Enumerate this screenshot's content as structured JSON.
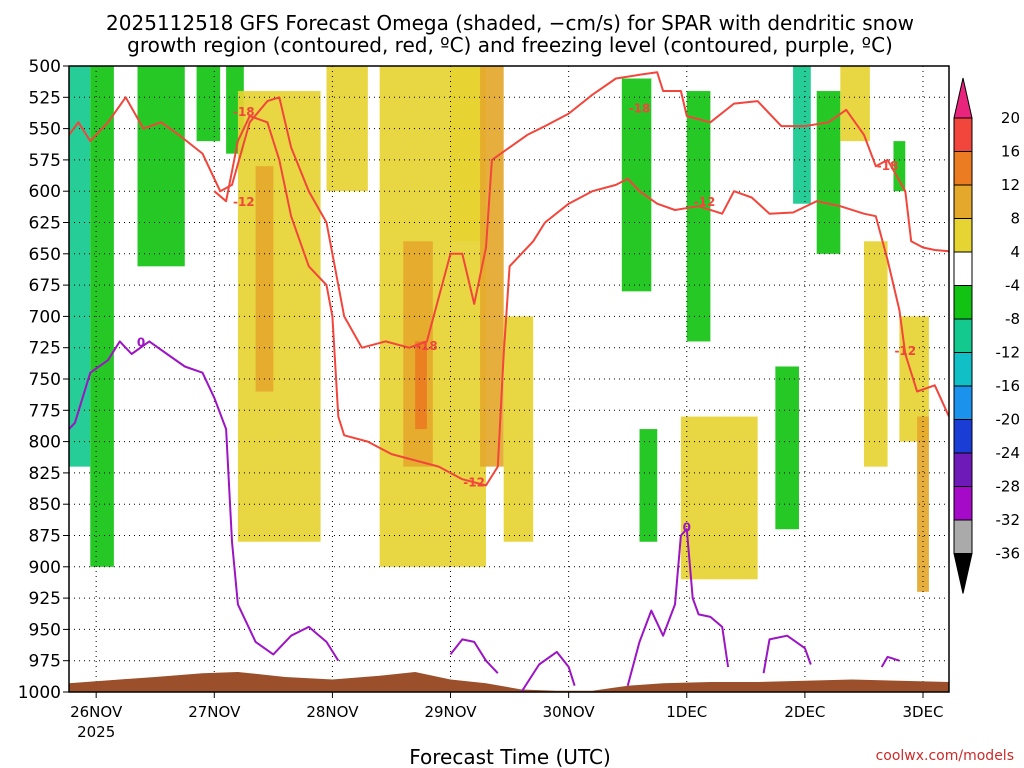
{
  "chart_data": {
    "type": "heatmap",
    "title": "2025112518 GFS Forecast Omega (shaded, −cm/s) for SPAR with dendritic snow",
    "subtitle": "growth region (contoured, red, ºC) and freezing level (contoured, purple, ºC)",
    "xlabel": "Forecast Time (UTC)",
    "ylabel": "",
    "credit": "coolwx.com/models",
    "x_ticks": [
      "26NOV",
      "27NOV",
      "28NOV",
      "29NOV",
      "30NOV",
      "1DEC",
      "2DEC",
      "3DEC"
    ],
    "x_tick_year": "2025",
    "x_range_days": [
      -0.23,
      7.22
    ],
    "y_ticks": [
      "500",
      "525",
      "550",
      "575",
      "600",
      "625",
      "650",
      "675",
      "700",
      "725",
      "750",
      "775",
      "800",
      "825",
      "850",
      "875",
      "900",
      "925",
      "950",
      "975",
      "1000"
    ],
    "y_range_hpa": [
      500,
      1000
    ],
    "grid": true,
    "colorbar": {
      "labels": [
        "20",
        "16",
        "12",
        "8",
        "4",
        "-4",
        "-8",
        "-12",
        "-16",
        "-20",
        "-24",
        "-28",
        "-32",
        "-36"
      ],
      "colors": [
        "#e8247d",
        "#f2463c",
        "#ec7c22",
        "#e4a82c",
        "#e6d432",
        "#ffffff",
        "#13c313",
        "#14c98e",
        "#11bfc7",
        "#1b93ec",
        "#1a3dd6",
        "#6e1ab9",
        "#a50ac8",
        "#aaaaaa",
        "#000000"
      ]
    },
    "colors": {
      "dgz": "#f2463c",
      "freezing": "#9d14c4",
      "terrain": "#9b4f2a",
      "shade_yellow": "#e6d432",
      "shade_gold": "#e4a82c",
      "shade_orange": "#ec7c22",
      "shade_green": "#13c313",
      "shade_teal": "#14c98e",
      "shade_cyan": "#11bfc7"
    },
    "dgz_upper": {
      "label": "-18",
      "points": [
        [
          -0.23,
          555
        ],
        [
          -0.15,
          545
        ],
        [
          -0.05,
          560
        ],
        [
          0.1,
          545
        ],
        [
          0.25,
          525
        ],
        [
          0.4,
          550
        ],
        [
          0.55,
          545
        ],
        [
          0.7,
          555
        ],
        [
          0.9,
          570
        ],
        [
          1.05,
          600
        ],
        [
          1.15,
          595
        ],
        [
          1.3,
          545
        ],
        [
          1.45,
          528
        ],
        [
          1.55,
          525
        ],
        [
          1.65,
          565
        ],
        [
          1.8,
          600
        ],
        [
          1.95,
          625
        ],
        [
          2.1,
          700
        ],
        [
          2.25,
          725
        ],
        [
          2.45,
          720
        ],
        [
          2.65,
          725
        ],
        [
          2.8,
          720
        ],
        [
          3.0,
          650
        ],
        [
          3.1,
          650
        ],
        [
          3.2,
          690
        ],
        [
          3.3,
          645
        ],
        [
          3.35,
          575
        ],
        [
          3.5,
          565
        ],
        [
          3.65,
          555
        ],
        [
          3.8,
          548
        ],
        [
          4.0,
          538
        ],
        [
          4.2,
          523
        ],
        [
          4.4,
          510
        ],
        [
          4.6,
          507
        ],
        [
          4.75,
          505
        ],
        [
          4.8,
          520
        ],
        [
          4.95,
          520
        ],
        [
          5.0,
          540
        ],
        [
          5.2,
          545
        ],
        [
          5.4,
          530
        ],
        [
          5.6,
          528
        ],
        [
          5.8,
          548
        ],
        [
          6.0,
          548
        ],
        [
          6.2,
          545
        ],
        [
          6.35,
          535
        ],
        [
          6.5,
          555
        ],
        [
          6.6,
          580
        ],
        [
          6.7,
          575
        ],
        [
          6.85,
          600
        ],
        [
          6.9,
          640
        ],
        [
          7.0,
          645
        ],
        [
          7.1,
          647
        ],
        [
          7.22,
          648
        ]
      ]
    },
    "dgz_lower": {
      "label": "-12",
      "points": [
        [
          1.0,
          600
        ],
        [
          1.1,
          608
        ],
        [
          1.2,
          560
        ],
        [
          1.3,
          540
        ],
        [
          1.45,
          545
        ],
        [
          1.5,
          560
        ],
        [
          1.55,
          575
        ],
        [
          1.65,
          620
        ],
        [
          1.8,
          660
        ],
        [
          1.95,
          675
        ],
        [
          2.0,
          700
        ],
        [
          2.05,
          780
        ],
        [
          2.1,
          795
        ],
        [
          2.3,
          800
        ],
        [
          2.5,
          810
        ],
        [
          2.7,
          815
        ],
        [
          2.9,
          820
        ],
        [
          3.1,
          830
        ],
        [
          3.3,
          835
        ],
        [
          3.4,
          820
        ],
        [
          3.45,
          730
        ],
        [
          3.5,
          660
        ],
        [
          3.6,
          650
        ],
        [
          3.7,
          640
        ],
        [
          3.8,
          625
        ],
        [
          4.0,
          610
        ],
        [
          4.2,
          600
        ],
        [
          4.4,
          595
        ],
        [
          4.5,
          590
        ],
        [
          4.6,
          600
        ],
        [
          4.75,
          610
        ],
        [
          4.9,
          615
        ],
        [
          5.1,
          612
        ],
        [
          5.3,
          618
        ],
        [
          5.4,
          600
        ],
        [
          5.55,
          605
        ],
        [
          5.7,
          618
        ],
        [
          5.9,
          617
        ],
        [
          6.1,
          608
        ],
        [
          6.3,
          612
        ],
        [
          6.5,
          618
        ],
        [
          6.6,
          620
        ],
        [
          6.7,
          655
        ],
        [
          6.8,
          695
        ],
        [
          6.85,
          730
        ],
        [
          6.95,
          760
        ],
        [
          7.1,
          755
        ],
        [
          7.22,
          780
        ]
      ]
    },
    "freezing_level": [
      {
        "label": "0",
        "points": [
          [
            -0.23,
            790
          ],
          [
            -0.18,
            785
          ],
          [
            -0.05,
            745
          ],
          [
            0.1,
            735
          ],
          [
            0.2,
            720
          ],
          [
            0.3,
            730
          ],
          [
            0.45,
            720
          ],
          [
            0.6,
            730
          ],
          [
            0.75,
            740
          ],
          [
            0.9,
            745
          ],
          [
            1.0,
            765
          ],
          [
            1.1,
            790
          ],
          [
            1.15,
            880
          ],
          [
            1.2,
            930
          ],
          [
            1.35,
            960
          ],
          [
            1.5,
            970
          ],
          [
            1.65,
            955
          ],
          [
            1.8,
            948
          ],
          [
            1.95,
            960
          ],
          [
            2.05,
            975
          ]
        ]
      },
      {
        "label": "",
        "points": [
          [
            3.0,
            970
          ],
          [
            3.1,
            958
          ],
          [
            3.2,
            960
          ],
          [
            3.3,
            975
          ],
          [
            3.4,
            985
          ]
        ]
      },
      {
        "label": "",
        "points": [
          [
            3.6,
            1000
          ],
          [
            3.75,
            978
          ],
          [
            3.9,
            968
          ],
          [
            4.0,
            980
          ],
          [
            4.05,
            995
          ]
        ]
      },
      {
        "label": "0",
        "points": [
          [
            4.5,
            995
          ],
          [
            4.6,
            960
          ],
          [
            4.7,
            935
          ],
          [
            4.8,
            955
          ],
          [
            4.9,
            930
          ],
          [
            4.95,
            875
          ],
          [
            5.0,
            870
          ],
          [
            5.05,
            925
          ],
          [
            5.1,
            938
          ],
          [
            5.2,
            940
          ],
          [
            5.3,
            948
          ],
          [
            5.35,
            980
          ]
        ]
      },
      {
        "label": "",
        "points": [
          [
            5.65,
            985
          ],
          [
            5.7,
            958
          ],
          [
            5.85,
            955
          ],
          [
            6.0,
            965
          ],
          [
            6.05,
            978
          ]
        ]
      },
      {
        "label": "",
        "points": [
          [
            6.65,
            980
          ],
          [
            6.7,
            972
          ],
          [
            6.8,
            975
          ]
        ]
      }
    ],
    "omega_shading": [
      {
        "level": "-12",
        "color": "#14c98e",
        "x0": -0.23,
        "x1": -0.05,
        "p0": 500,
        "p1": 820
      },
      {
        "level": "-8",
        "color": "#13c313",
        "x0": -0.05,
        "x1": 0.15,
        "p0": 500,
        "p1": 900
      },
      {
        "level": "-8",
        "color": "#13c313",
        "x0": 0.35,
        "x1": 0.75,
        "p0": 500,
        "p1": 660
      },
      {
        "level": "-8",
        "color": "#13c313",
        "x0": 0.85,
        "x1": 1.05,
        "p0": 500,
        "p1": 560
      },
      {
        "level": "-8",
        "color": "#13c313",
        "x0": 1.1,
        "x1": 1.25,
        "p0": 500,
        "p1": 570
      },
      {
        "level": "4",
        "color": "#e6d432",
        "x0": 1.2,
        "x1": 1.9,
        "p0": 520,
        "p1": 880
      },
      {
        "level": "8",
        "color": "#e4a82c",
        "x0": 1.35,
        "x1": 1.5,
        "p0": 580,
        "p1": 760
      },
      {
        "level": "4",
        "color": "#e6d432",
        "x0": 1.95,
        "x1": 2.3,
        "p0": 500,
        "p1": 600
      },
      {
        "level": "4",
        "color": "#e6d432",
        "x0": 2.4,
        "x1": 3.3,
        "p0": 500,
        "p1": 900
      },
      {
        "level": "8",
        "color": "#e4a82c",
        "x0": 2.6,
        "x1": 2.85,
        "p0": 640,
        "p1": 820
      },
      {
        "level": "12",
        "color": "#ec7c22",
        "x0": 2.7,
        "x1": 2.8,
        "p0": 720,
        "p1": 790
      },
      {
        "level": "8",
        "color": "#e4a82c",
        "x0": 3.25,
        "x1": 3.45,
        "p0": 500,
        "p1": 820
      },
      {
        "level": "4",
        "color": "#e6d432",
        "x0": 3.45,
        "x1": 3.7,
        "p0": 700,
        "p1": 880
      },
      {
        "level": "4",
        "color": "#e6d432",
        "x0": 3.0,
        "x1": 3.25,
        "p0": 500,
        "p1": 640
      },
      {
        "level": "-8",
        "color": "#13c313",
        "x0": 4.45,
        "x1": 4.7,
        "p0": 510,
        "p1": 680
      },
      {
        "level": "-8",
        "color": "#13c313",
        "x0": 5.0,
        "x1": 5.2,
        "p0": 520,
        "p1": 720
      },
      {
        "level": "-8",
        "color": "#13c313",
        "x0": 4.6,
        "x1": 4.75,
        "p0": 790,
        "p1": 880
      },
      {
        "level": "4",
        "color": "#e6d432",
        "x0": 4.95,
        "x1": 5.6,
        "p0": 780,
        "p1": 910
      },
      {
        "level": "-8",
        "color": "#13c313",
        "x0": 5.75,
        "x1": 5.95,
        "p0": 740,
        "p1": 870
      },
      {
        "level": "-12",
        "color": "#14c98e",
        "x0": 5.9,
        "x1": 6.05,
        "p0": 500,
        "p1": 610
      },
      {
        "level": "-8",
        "color": "#13c313",
        "x0": 6.1,
        "x1": 6.3,
        "p0": 520,
        "p1": 650
      },
      {
        "level": "4",
        "color": "#e6d432",
        "x0": 6.3,
        "x1": 6.55,
        "p0": 500,
        "p1": 560
      },
      {
        "level": "4",
        "color": "#e6d432",
        "x0": 6.5,
        "x1": 6.7,
        "p0": 640,
        "p1": 820
      },
      {
        "level": "-8",
        "color": "#13c313",
        "x0": 6.75,
        "x1": 6.85,
        "p0": 560,
        "p1": 600
      },
      {
        "level": "4",
        "color": "#e6d432",
        "x0": 6.8,
        "x1": 7.05,
        "p0": 700,
        "p1": 800
      },
      {
        "level": "8",
        "color": "#e4a82c",
        "x0": 6.95,
        "x1": 7.05,
        "p0": 780,
        "p1": 920
      }
    ],
    "terrain_surface": [
      [
        -0.23,
        993
      ],
      [
        0.2,
        990
      ],
      [
        0.5,
        988
      ],
      [
        0.9,
        985
      ],
      [
        1.2,
        984
      ],
      [
        1.6,
        988
      ],
      [
        2.0,
        990
      ],
      [
        2.4,
        987
      ],
      [
        2.7,
        984
      ],
      [
        3.0,
        990
      ],
      [
        3.3,
        993
      ],
      [
        3.6,
        998
      ],
      [
        3.9,
        999
      ],
      [
        4.2,
        999
      ],
      [
        4.5,
        995
      ],
      [
        4.8,
        993
      ],
      [
        5.2,
        992
      ],
      [
        5.6,
        992
      ],
      [
        6.0,
        991
      ],
      [
        6.4,
        990
      ],
      [
        6.8,
        991
      ],
      [
        7.22,
        992
      ]
    ]
  }
}
